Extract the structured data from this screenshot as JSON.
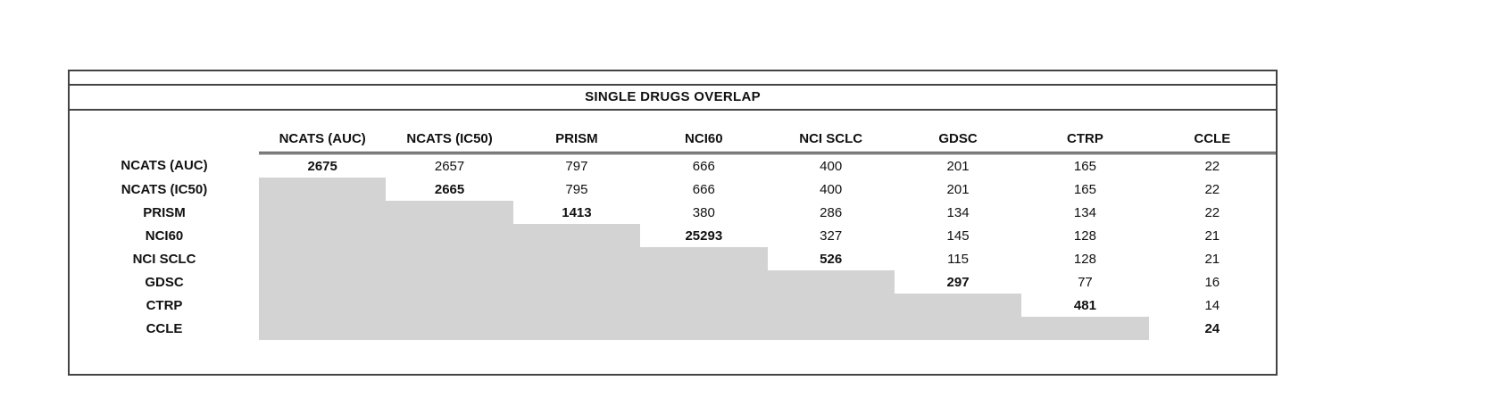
{
  "title": "SINGLE DRUGS OVERLAP",
  "colors": {
    "shaded": "#d3d3d3",
    "border": "#444444",
    "text": "#111111"
  },
  "table": {
    "columns": [
      "NCATS (AUC)",
      "NCATS (IC50)",
      "PRISM",
      "NCI60",
      "NCI SCLC",
      "GDSC",
      "CTRP",
      "CCLE"
    ],
    "rows": [
      {
        "label": "NCATS (AUC)",
        "values": [
          2675,
          2657,
          797,
          666,
          400,
          201,
          165,
          22
        ]
      },
      {
        "label": "NCATS (IC50)",
        "values": [
          null,
          2665,
          795,
          666,
          400,
          201,
          165,
          22
        ]
      },
      {
        "label": "PRISM",
        "values": [
          null,
          null,
          1413,
          380,
          286,
          134,
          134,
          22
        ]
      },
      {
        "label": "NCI60",
        "values": [
          null,
          null,
          null,
          25293,
          327,
          145,
          128,
          21
        ]
      },
      {
        "label": "NCI SCLC",
        "values": [
          null,
          null,
          null,
          null,
          526,
          115,
          128,
          21
        ]
      },
      {
        "label": "GDSC",
        "values": [
          null,
          null,
          null,
          null,
          null,
          297,
          77,
          16
        ]
      },
      {
        "label": "CTRP",
        "values": [
          null,
          null,
          null,
          null,
          null,
          null,
          481,
          14
        ]
      },
      {
        "label": "CCLE",
        "values": [
          null,
          null,
          null,
          null,
          null,
          null,
          null,
          24
        ]
      }
    ]
  }
}
